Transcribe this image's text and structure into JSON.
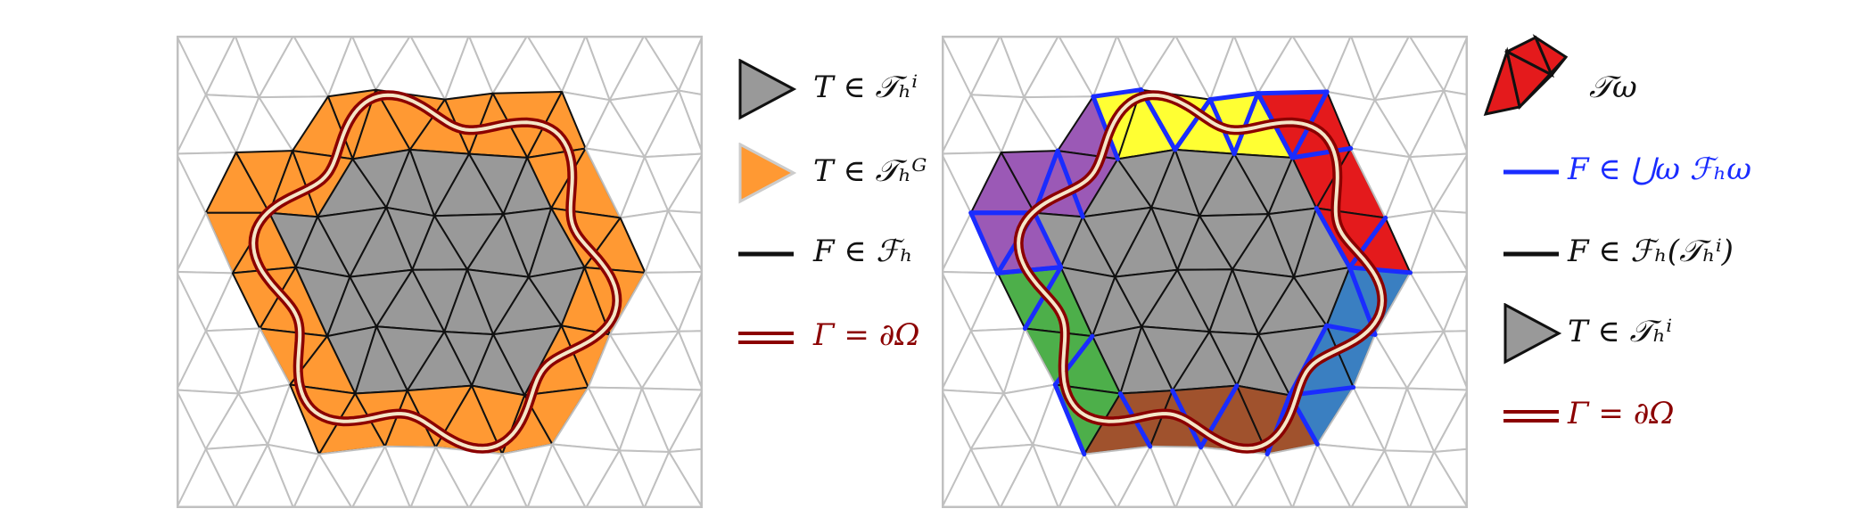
{
  "colors": {
    "mesh_bg": "#c0c0c0",
    "mesh_edge": "#111111",
    "interior": "#999999",
    "cut": "#ff9933",
    "boundary": "#8b0000",
    "face_blue": "#1a2cff",
    "patch_purple": "#9b59b6",
    "patch_yellow": "#ffff33",
    "patch_red": "#e41a1c",
    "patch_blue": "#3a7fc1",
    "patch_brown": "#a0522d",
    "patch_green": "#4daf4a"
  },
  "left_legend": [
    {
      "icon": "grey-triangle-icon",
      "label": "T ∈ 𝒯ₕⁱ"
    },
    {
      "icon": "orange-triangle-icon",
      "label": "T ∈ 𝒯ₕᴳ"
    },
    {
      "icon": "black-line-icon",
      "label": "F ∈ ℱₕ"
    },
    {
      "icon": "double-red-line-icon",
      "label": "Γ = ∂Ω"
    }
  ],
  "right_legend": [
    {
      "icon": "red-patch-icon",
      "label": "𝒯ω"
    },
    {
      "icon": "blue-line-icon",
      "label": "F ∈ ⋃ω ℱₕω"
    },
    {
      "icon": "black-line-icon",
      "label": "F ∈ ℱₕ(𝒯ₕⁱ)"
    },
    {
      "icon": "grey-triangle-icon",
      "label": "T ∈ 𝒯ₕⁱ"
    },
    {
      "icon": "double-red-line-icon",
      "label": "Γ = ∂Ω"
    }
  ]
}
